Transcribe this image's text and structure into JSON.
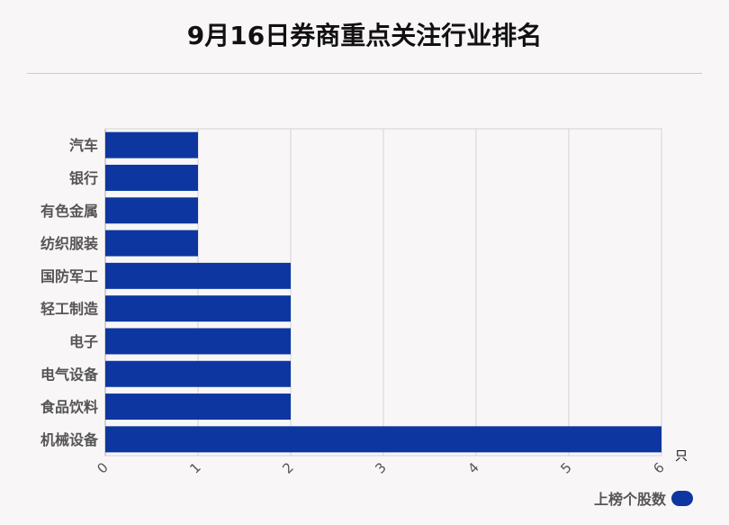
{
  "chart_data": {
    "type": "bar",
    "orientation": "horizontal",
    "title": "9月16日券商重点关注行业排名",
    "categories": [
      "汽车",
      "银行",
      "有色金属",
      "纺织服装",
      "国防军工",
      "轻工制造",
      "电子",
      "电气设备",
      "食品饮料",
      "机械设备"
    ],
    "series": [
      {
        "name": "上榜个股数",
        "values": [
          1,
          1,
          1,
          1,
          2,
          2,
          2,
          2,
          2,
          6
        ],
        "color": "#0d36a1"
      }
    ],
    "x_unit": "只",
    "xlim": [
      0,
      6
    ],
    "x_ticks": [
      "0",
      "1",
      "2",
      "3",
      "4",
      "5",
      "6"
    ],
    "grid": true,
    "legend_position": "bottom-right"
  }
}
